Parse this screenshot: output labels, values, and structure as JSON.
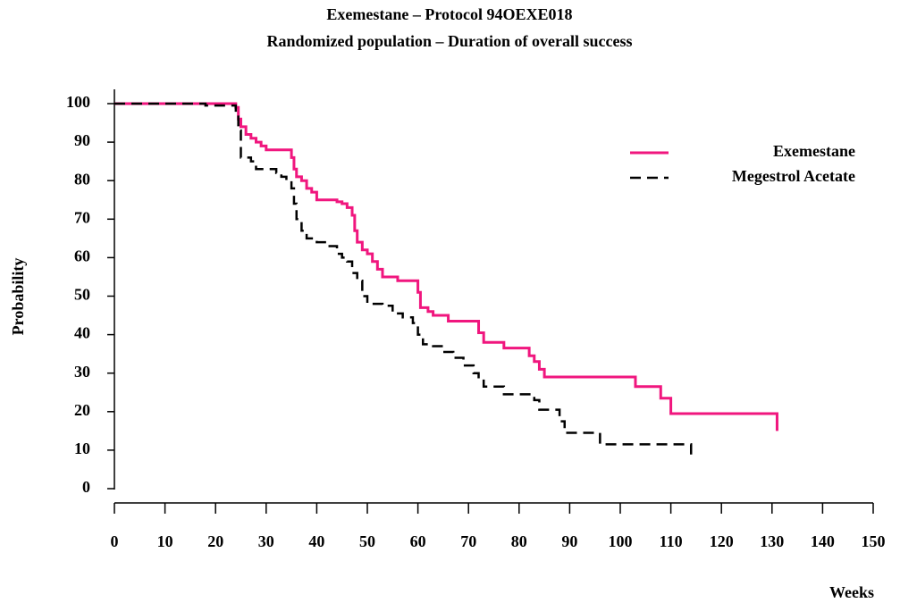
{
  "chart_data": {
    "type": "step",
    "title": "Exemestane  – Protocol 94OEXE018",
    "subtitle": "Randomized population  –  Duration of overall success",
    "ylabel": "Probability",
    "xlabel": "Weeks",
    "xlim": [
      0,
      150
    ],
    "xticks": [
      0,
      10,
      20,
      30,
      40,
      50,
      60,
      70,
      80,
      90,
      100,
      110,
      120,
      130,
      140,
      150
    ],
    "ylim": [
      0,
      100
    ],
    "yticks": [
      0,
      10,
      20,
      30,
      40,
      50,
      60,
      70,
      80,
      90,
      100
    ],
    "legend": "upper right",
    "series": [
      {
        "name": "Exemestane",
        "color": "#f0167e",
        "style": "solid",
        "x": [
          0,
          24,
          24.5,
          25,
          26,
          27,
          28,
          29,
          30,
          35,
          35.5,
          36,
          37,
          38,
          39,
          40,
          44,
          45,
          46,
          47,
          47.5,
          48,
          49,
          50,
          51,
          52,
          53,
          56,
          60,
          60.5,
          62,
          63,
          66,
          72,
          73,
          77,
          82,
          83,
          84,
          85,
          103,
          108,
          110,
          131
        ],
        "values": [
          100,
          99,
          96,
          94,
          92,
          91,
          90,
          89,
          88,
          86,
          83,
          81,
          80,
          78,
          77,
          75,
          74.5,
          74,
          73,
          71,
          67,
          64,
          62,
          61,
          59,
          57,
          55,
          54,
          51,
          47,
          46,
          45,
          43.5,
          40.5,
          38,
          36.5,
          34.5,
          33,
          31,
          29,
          26.5,
          23.5,
          19.5,
          15
        ]
      },
      {
        "name": "Megestrol Acetate",
        "color": "#000000",
        "style": "dashed",
        "x": [
          0,
          18,
          24,
          24.5,
          25,
          27,
          28,
          32,
          33,
          34,
          35,
          35.5,
          36,
          37,
          38,
          40,
          42,
          44,
          45,
          46,
          47,
          48,
          49,
          50,
          53,
          55,
          57,
          59,
          60,
          61,
          63,
          65,
          67,
          69,
          71,
          72,
          73,
          77,
          83,
          84,
          88,
          89,
          96,
          114
        ],
        "values": [
          100,
          99.5,
          97,
          93,
          86,
          85,
          83,
          82,
          81,
          80,
          78,
          74,
          70,
          67,
          65,
          64,
          63,
          61,
          60,
          59,
          56,
          54,
          50,
          48,
          47.5,
          45.5,
          44.5,
          43,
          40,
          37.5,
          37,
          35.5,
          34,
          32,
          30,
          28.5,
          26.5,
          24.5,
          23,
          20.5,
          17.5,
          14.5,
          11.5,
          8.5
        ]
      }
    ]
  }
}
